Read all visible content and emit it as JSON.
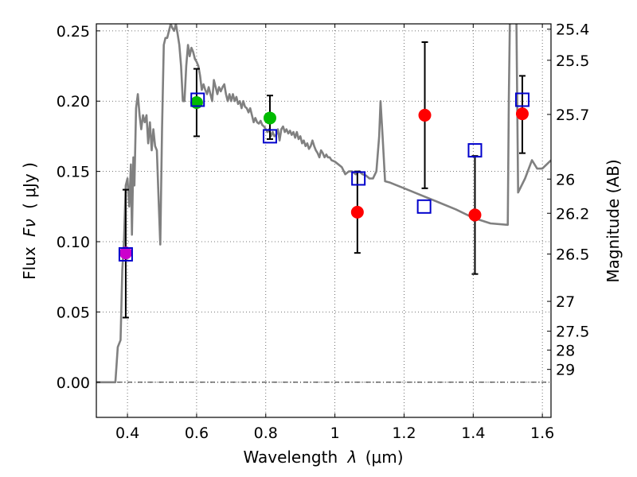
{
  "chart_data": {
    "type": "scatter",
    "xlabel_text": "Wavelength",
    "xlabel_sym": "λ",
    "xlabel_unit": "(μm)",
    "ylabel_text": "Flux",
    "ylabel_sym": "Fν",
    "ylabel_unit": "( μJy )",
    "y2label": "Magnitude (AB)",
    "xlim": [
      0.31,
      1.625
    ],
    "ylim": [
      -0.025,
      0.255
    ],
    "grid": true,
    "x_ticks": [
      0.4,
      0.6,
      0.8,
      1.0,
      1.2,
      1.4,
      1.6
    ],
    "x_tick_labels": [
      "0.4",
      "0.6",
      "0.8",
      "1",
      "1.2",
      "1.4",
      "1.6"
    ],
    "y_ticks": [
      0.0,
      0.05,
      0.1,
      0.15,
      0.2,
      0.25
    ],
    "y_tick_labels": [
      "0.00",
      "0.05",
      "0.10",
      "0.15",
      "0.20",
      "0.25"
    ],
    "mag_ticks": [
      {
        "label": "25.4",
        "mag": 25.4
      },
      {
        "label": "25.5",
        "mag": 25.5
      },
      {
        "label": "25.7",
        "mag": 25.7
      },
      {
        "label": "26",
        "mag": 26.0
      },
      {
        "label": "26.2",
        "mag": 26.2
      },
      {
        "label": "26.5",
        "mag": 26.5
      },
      {
        "label": "27",
        "mag": 27.0
      },
      {
        "label": "27.5",
        "mag": 27.5
      },
      {
        "label": "28",
        "mag": 28.0
      },
      {
        "label": "29",
        "mag": 29.0
      }
    ],
    "series": [
      {
        "name": "model_spectrum",
        "kind": "line",
        "color": "#808080",
        "points": [
          [
            0.31,
            0.0
          ],
          [
            0.365,
            0.0
          ],
          [
            0.372,
            0.025
          ],
          [
            0.38,
            0.03
          ],
          [
            0.385,
            0.08
          ],
          [
            0.39,
            0.1
          ],
          [
            0.395,
            0.14
          ],
          [
            0.4,
            0.145
          ],
          [
            0.405,
            0.125
          ],
          [
            0.41,
            0.155
          ],
          [
            0.413,
            0.105
          ],
          [
            0.417,
            0.16
          ],
          [
            0.42,
            0.14
          ],
          [
            0.425,
            0.195
          ],
          [
            0.43,
            0.205
          ],
          [
            0.435,
            0.19
          ],
          [
            0.44,
            0.18
          ],
          [
            0.445,
            0.19
          ],
          [
            0.45,
            0.185
          ],
          [
            0.455,
            0.19
          ],
          [
            0.46,
            0.17
          ],
          [
            0.465,
            0.185
          ],
          [
            0.47,
            0.165
          ],
          [
            0.475,
            0.18
          ],
          [
            0.48,
            0.168
          ],
          [
            0.485,
            0.165
          ],
          [
            0.49,
            0.13
          ],
          [
            0.495,
            0.098
          ],
          [
            0.5,
            0.18
          ],
          [
            0.505,
            0.24
          ],
          [
            0.51,
            0.245
          ],
          [
            0.515,
            0.245
          ],
          [
            0.52,
            0.25
          ],
          [
            0.525,
            0.255
          ],
          [
            0.53,
            0.252
          ],
          [
            0.535,
            0.25
          ],
          [
            0.54,
            0.255
          ],
          [
            0.545,
            0.248
          ],
          [
            0.55,
            0.24
          ],
          [
            0.555,
            0.225
          ],
          [
            0.56,
            0.2
          ],
          [
            0.565,
            0.2
          ],
          [
            0.57,
            0.225
          ],
          [
            0.575,
            0.24
          ],
          [
            0.58,
            0.232
          ],
          [
            0.585,
            0.238
          ],
          [
            0.59,
            0.235
          ],
          [
            0.595,
            0.23
          ],
          [
            0.6,
            0.228
          ],
          [
            0.605,
            0.225
          ],
          [
            0.61,
            0.218
          ],
          [
            0.615,
            0.208
          ],
          [
            0.62,
            0.212
          ],
          [
            0.625,
            0.208
          ],
          [
            0.63,
            0.205
          ],
          [
            0.635,
            0.21
          ],
          [
            0.64,
            0.205
          ],
          [
            0.645,
            0.2
          ],
          [
            0.65,
            0.215
          ],
          [
            0.655,
            0.21
          ],
          [
            0.66,
            0.205
          ],
          [
            0.665,
            0.21
          ],
          [
            0.67,
            0.207
          ],
          [
            0.675,
            0.21
          ],
          [
            0.68,
            0.212
          ],
          [
            0.685,
            0.205
          ],
          [
            0.69,
            0.2
          ],
          [
            0.695,
            0.205
          ],
          [
            0.7,
            0.2
          ],
          [
            0.705,
            0.205
          ],
          [
            0.71,
            0.2
          ],
          [
            0.715,
            0.203
          ],
          [
            0.72,
            0.198
          ],
          [
            0.725,
            0.2
          ],
          [
            0.73,
            0.195
          ],
          [
            0.735,
            0.2
          ],
          [
            0.74,
            0.196
          ],
          [
            0.745,
            0.195
          ],
          [
            0.75,
            0.192
          ],
          [
            0.755,
            0.195
          ],
          [
            0.76,
            0.19
          ],
          [
            0.765,
            0.185
          ],
          [
            0.77,
            0.188
          ],
          [
            0.775,
            0.185
          ],
          [
            0.78,
            0.184
          ],
          [
            0.785,
            0.186
          ],
          [
            0.79,
            0.183
          ],
          [
            0.795,
            0.182
          ],
          [
            0.8,
            0.18
          ],
          [
            0.805,
            0.178
          ],
          [
            0.81,
            0.18
          ],
          [
            0.815,
            0.175
          ],
          [
            0.82,
            0.178
          ],
          [
            0.825,
            0.175
          ],
          [
            0.83,
            0.176
          ],
          [
            0.835,
            0.18
          ],
          [
            0.84,
            0.172
          ],
          [
            0.845,
            0.18
          ],
          [
            0.85,
            0.182
          ],
          [
            0.855,
            0.178
          ],
          [
            0.86,
            0.18
          ],
          [
            0.865,
            0.177
          ],
          [
            0.87,
            0.179
          ],
          [
            0.875,
            0.176
          ],
          [
            0.88,
            0.178
          ],
          [
            0.885,
            0.174
          ],
          [
            0.89,
            0.178
          ],
          [
            0.895,
            0.173
          ],
          [
            0.9,
            0.175
          ],
          [
            0.905,
            0.17
          ],
          [
            0.91,
            0.172
          ],
          [
            0.915,
            0.168
          ],
          [
            0.92,
            0.17
          ],
          [
            0.925,
            0.166
          ],
          [
            0.93,
            0.168
          ],
          [
            0.935,
            0.172
          ],
          [
            0.94,
            0.168
          ],
          [
            0.945,
            0.165
          ],
          [
            0.95,
            0.163
          ],
          [
            0.955,
            0.16
          ],
          [
            0.96,
            0.165
          ],
          [
            0.965,
            0.163
          ],
          [
            0.97,
            0.16
          ],
          [
            0.975,
            0.162
          ],
          [
            0.98,
            0.16
          ],
          [
            0.985,
            0.16
          ],
          [
            0.99,
            0.158
          ],
          [
            1.0,
            0.157
          ],
          [
            1.01,
            0.155
          ],
          [
            1.02,
            0.153
          ],
          [
            1.03,
            0.148
          ],
          [
            1.04,
            0.15
          ],
          [
            1.05,
            0.15
          ],
          [
            1.06,
            0.148
          ],
          [
            1.07,
            0.15
          ],
          [
            1.08,
            0.148
          ],
          [
            1.09,
            0.147
          ],
          [
            1.1,
            0.145
          ],
          [
            1.11,
            0.145
          ],
          [
            1.12,
            0.15
          ],
          [
            1.128,
            0.175
          ],
          [
            1.132,
            0.2
          ],
          [
            1.138,
            0.175
          ],
          [
            1.145,
            0.143
          ],
          [
            1.16,
            0.142
          ],
          [
            1.2,
            0.138
          ],
          [
            1.25,
            0.133
          ],
          [
            1.3,
            0.128
          ],
          [
            1.35,
            0.123
          ],
          [
            1.4,
            0.117
          ],
          [
            1.45,
            0.113
          ],
          [
            1.5,
            0.112
          ],
          [
            1.503,
            0.2
          ],
          [
            1.506,
            0.255
          ]
        ],
        "second_points": [
          [
            1.525,
            0.255
          ],
          [
            1.53,
            0.135
          ],
          [
            1.55,
            0.145
          ],
          [
            1.57,
            0.158
          ],
          [
            1.585,
            0.152
          ],
          [
            1.6,
            0.152
          ],
          [
            1.625,
            0.158
          ]
        ]
      },
      {
        "name": "model_bandpass_squares",
        "kind": "square",
        "color": "#0000cc",
        "points": [
          [
            0.395,
            0.091
          ],
          [
            0.603,
            0.201
          ],
          [
            0.812,
            0.175
          ],
          [
            1.068,
            0.145
          ],
          [
            1.258,
            0.125
          ],
          [
            1.405,
            0.165
          ],
          [
            1.542,
            0.201
          ]
        ]
      },
      {
        "name": "observed_green",
        "kind": "circle",
        "color": "#00bb00",
        "points": [
          [
            0.6,
            0.199,
            0.175,
            0.223
          ],
          [
            0.812,
            0.188,
            0.173,
            0.204
          ]
        ]
      },
      {
        "name": "observed_red",
        "kind": "circle",
        "color": "#ff0000",
        "points": [
          [
            1.065,
            0.121,
            0.092,
            0.15
          ],
          [
            1.26,
            0.19,
            0.138,
            0.242
          ],
          [
            1.405,
            0.119,
            0.077,
            0.161
          ],
          [
            1.542,
            0.191,
            0.163,
            0.218
          ]
        ]
      },
      {
        "name": "observed_magenta",
        "kind": "circle",
        "color": "#cc00cc",
        "points": [
          [
            0.395,
            0.092,
            0.046,
            0.137
          ]
        ]
      }
    ]
  }
}
